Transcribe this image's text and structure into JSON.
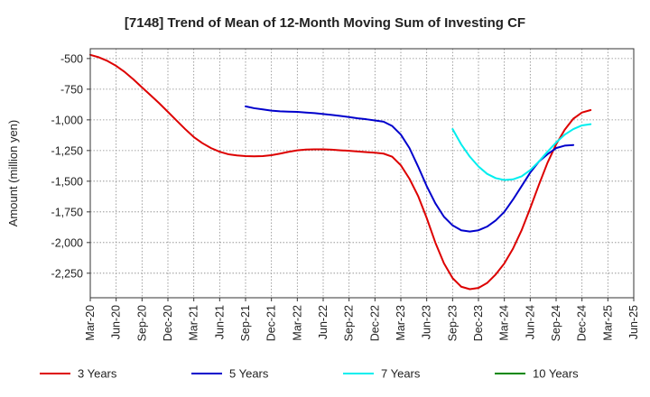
{
  "chart_data": {
    "type": "line",
    "title": "[7148]  Trend of Mean of 12-Month Moving Sum of Investing CF",
    "xlabel": "",
    "ylabel": "Amount (million yen)",
    "ylim": [
      -2450,
      -420
    ],
    "yticks": [
      -500,
      -750,
      -1000,
      -1250,
      -1500,
      -1750,
      -2000,
      -2250
    ],
    "ytick_labels": [
      "-500",
      "-750",
      "-1,000",
      "-1,250",
      "-1,500",
      "-1,750",
      "-2,000",
      "-2,250"
    ],
    "x_labels": [
      "Mar-20",
      "Jun-20",
      "Sep-20",
      "Dec-20",
      "Mar-21",
      "Jun-21",
      "Sep-21",
      "Dec-21",
      "Mar-22",
      "Jun-22",
      "Sep-22",
      "Dec-22",
      "Mar-23",
      "Jun-23",
      "Sep-23",
      "Dec-23",
      "Mar-24",
      "Jun-24",
      "Sep-24",
      "Dec-24",
      "Mar-25",
      "Jun-25"
    ],
    "grid": true,
    "legend_position": "bottom",
    "series": [
      {
        "name": "3 Years",
        "color": "#dd0000",
        "start_index": 0,
        "values": [
          -470,
          -490,
          -520,
          -560,
          -610,
          -670,
          -735,
          -800,
          -865,
          -935,
          -1005,
          -1075,
          -1140,
          -1190,
          -1230,
          -1260,
          -1280,
          -1290,
          -1295,
          -1297,
          -1295,
          -1288,
          -1275,
          -1260,
          -1248,
          -1242,
          -1240,
          -1240,
          -1243,
          -1248,
          -1252,
          -1258,
          -1263,
          -1268,
          -1275,
          -1300,
          -1370,
          -1480,
          -1620,
          -1800,
          -2000,
          -2170,
          -2290,
          -2360,
          -2380,
          -2370,
          -2330,
          -2260,
          -2170,
          -2050,
          -1900,
          -1720,
          -1530,
          -1350,
          -1200,
          -1080,
          -990,
          -940,
          -920
        ]
      },
      {
        "name": "5 Years",
        "color": "#0000cc",
        "start_index": 18,
        "values": [
          -890,
          -905,
          -915,
          -925,
          -930,
          -933,
          -935,
          -940,
          -945,
          -952,
          -960,
          -968,
          -977,
          -987,
          -995,
          -1005,
          -1015,
          -1050,
          -1120,
          -1230,
          -1380,
          -1540,
          -1680,
          -1790,
          -1860,
          -1900,
          -1910,
          -1900,
          -1870,
          -1820,
          -1750,
          -1650,
          -1540,
          -1430,
          -1340,
          -1280,
          -1230,
          -1210,
          -1205
        ]
      },
      {
        "name": "7 Years",
        "color": "#00eeee",
        "start_index": 42,
        "values": [
          -1075,
          -1200,
          -1300,
          -1380,
          -1440,
          -1475,
          -1490,
          -1485,
          -1460,
          -1410,
          -1340,
          -1260,
          -1185,
          -1120,
          -1075,
          -1045,
          -1035
        ]
      },
      {
        "name": "10 Years",
        "color": "#008800",
        "start_index": 0,
        "values": []
      }
    ]
  }
}
